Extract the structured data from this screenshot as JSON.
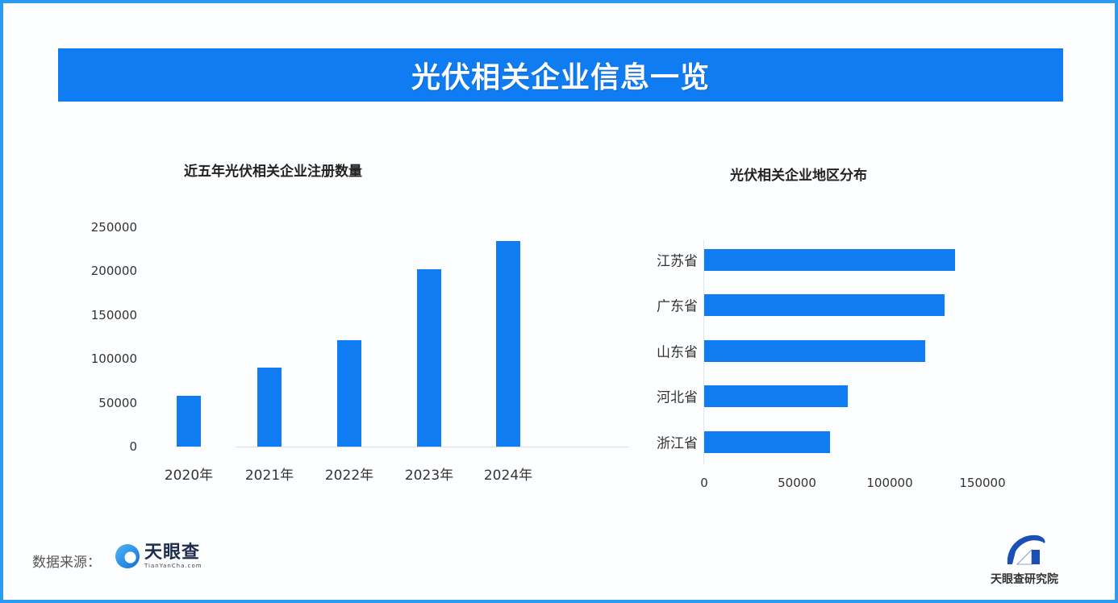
{
  "banner": {
    "title": "光伏相关企业信息一览"
  },
  "colors": {
    "accent": "#0f7cf2",
    "border": "#2b9bf0",
    "text": "#333333"
  },
  "chart_data": [
    {
      "type": "bar",
      "title": "近五年光伏相关企业注册数量",
      "categories": [
        "2020年",
        "2021年",
        "2022年",
        "2023年",
        "2024年"
      ],
      "values": [
        58000,
        90000,
        121000,
        202000,
        234000
      ],
      "xlabel": "",
      "ylabel": "",
      "ylim": [
        0,
        250000
      ],
      "yticks": [
        "250000",
        "200000",
        "150000",
        "100000",
        "50000",
        "0"
      ],
      "grid": false,
      "legend": "none",
      "orientation": "vertical"
    },
    {
      "type": "bar",
      "title": "光伏相关企业地区分布",
      "categories": [
        "江苏省",
        "广东省",
        "山东省",
        "河北省",
        "浙江省"
      ],
      "values": [
        135000,
        129500,
        119000,
        77500,
        68000
      ],
      "xlabel": "",
      "ylabel": "",
      "xlim": [
        0,
        150000
      ],
      "xticks": [
        "0",
        "50000",
        "100000",
        "150000"
      ],
      "grid": false,
      "legend": "none",
      "orientation": "horizontal"
    }
  ],
  "footer": {
    "source_label": "数据来源：",
    "source_logo_text": "天眼查",
    "source_logo_sub": "TianYanCha.com",
    "institute_name": "天眼查研究院"
  }
}
